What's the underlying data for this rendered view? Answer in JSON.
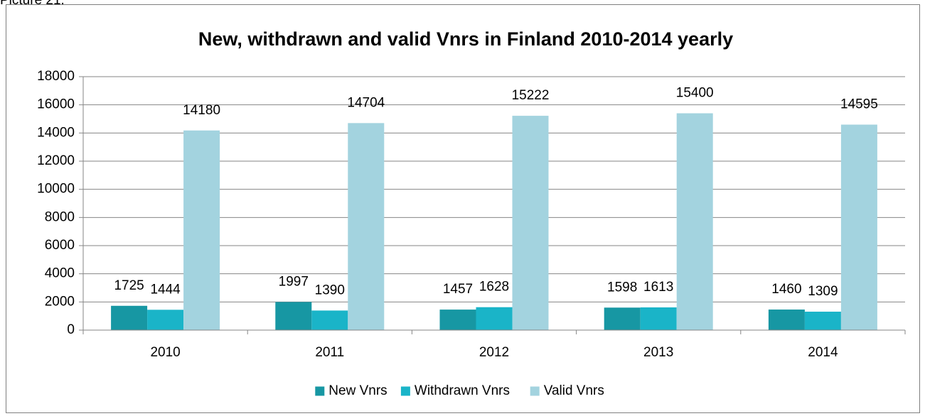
{
  "caption": "Picture 21.",
  "chart_data": {
    "type": "bar",
    "title": "New, withdrawn and valid Vnrs in Finland 2010-2014 yearly",
    "categories": [
      "2010",
      "2011",
      "2012",
      "2013",
      "2014"
    ],
    "series": [
      {
        "name": "New Vnrs",
        "color": "#1797a3",
        "values": [
          1725,
          1997,
          1457,
          1598,
          1460
        ]
      },
      {
        "name": "Withdrawn Vnrs",
        "color": "#1ab4c8",
        "values": [
          1444,
          1390,
          1628,
          1613,
          1309
        ]
      },
      {
        "name": "Valid Vnrs",
        "color": "#a3d3df",
        "values": [
          14180,
          14704,
          15222,
          15400,
          14595
        ]
      }
    ],
    "ylim": [
      0,
      18000
    ],
    "yticks": [
      0,
      2000,
      4000,
      6000,
      8000,
      10000,
      12000,
      14000,
      16000,
      18000
    ],
    "grid": true,
    "legend": "bottom"
  }
}
